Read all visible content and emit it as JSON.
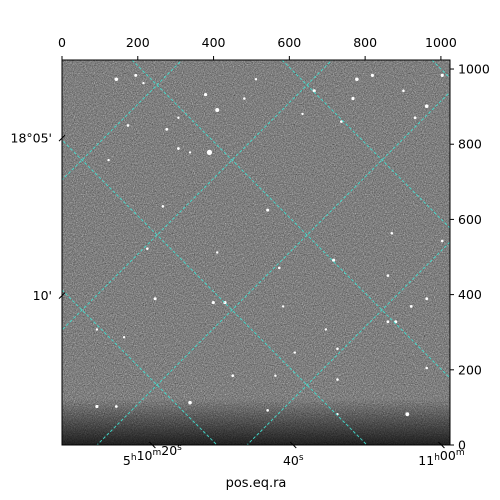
{
  "chart_data": {
    "type": "image",
    "colormap": "grayscale",
    "title": "",
    "xlabel": "pos.eq.ra",
    "ylabel": "",
    "pixel_axes": {
      "x_range": [
        0,
        1024
      ],
      "y_range": [
        0,
        1024
      ],
      "x_ticks": [
        "0",
        "200",
        "400",
        "600",
        "800",
        "1000"
      ],
      "y_ticks": [
        "0",
        "200",
        "400",
        "600",
        "800",
        "1000"
      ]
    },
    "world_axes": {
      "ra_ticks": [
        {
          "h": "5",
          "m": "10",
          "s": "20",
          "pos": 0.233
        },
        {
          "h": "",
          "m": "",
          "s": "40s",
          "pos": 0.596
        },
        {
          "h": "11",
          "m": "00",
          "s": "",
          "pos": 0.978
        }
      ],
      "dec_ticks": [
        {
          "label": "18°05'",
          "pos": 0.797
        },
        {
          "label": "10'",
          "pos": 0.388
        }
      ]
    },
    "grid": {
      "color": "#40e0d0",
      "style": "dashed"
    },
    "stars": [
      [
        0.14,
        0.95,
        1.8
      ],
      [
        0.19,
        0.96,
        1.5
      ],
      [
        0.37,
        0.91,
        1.6
      ],
      [
        0.4,
        0.87,
        2.0
      ],
      [
        0.3,
        0.85,
        1.2
      ],
      [
        0.27,
        0.82,
        1.4
      ],
      [
        0.38,
        0.76,
        2.6
      ],
      [
        0.3,
        0.77,
        1.4
      ],
      [
        0.33,
        0.76,
        1.2
      ],
      [
        0.65,
        0.92,
        1.6
      ],
      [
        0.75,
        0.9,
        1.6
      ],
      [
        0.76,
        0.95,
        1.8
      ],
      [
        0.8,
        0.96,
        1.6
      ],
      [
        0.88,
        0.92,
        1.3
      ],
      [
        0.94,
        0.88,
        1.8
      ],
      [
        0.91,
        0.85,
        1.4
      ],
      [
        0.98,
        0.96,
        1.6
      ],
      [
        0.17,
        0.83,
        1.3
      ],
      [
        0.72,
        0.84,
        1.3
      ],
      [
        0.53,
        0.61,
        1.5
      ],
      [
        0.26,
        0.62,
        1.3
      ],
      [
        0.22,
        0.51,
        1.3
      ],
      [
        0.56,
        0.46,
        1.3
      ],
      [
        0.7,
        0.48,
        1.6
      ],
      [
        0.84,
        0.44,
        1.3
      ],
      [
        0.4,
        0.5,
        1.2
      ],
      [
        0.24,
        0.38,
        1.5
      ],
      [
        0.39,
        0.37,
        1.6
      ],
      [
        0.42,
        0.37,
        1.6
      ],
      [
        0.57,
        0.36,
        1.2
      ],
      [
        0.68,
        0.3,
        1.2
      ],
      [
        0.84,
        0.32,
        1.4
      ],
      [
        0.9,
        0.36,
        1.4
      ],
      [
        0.94,
        0.38,
        1.4
      ],
      [
        0.86,
        0.32,
        1.6
      ],
      [
        0.71,
        0.25,
        1.3
      ],
      [
        0.6,
        0.24,
        1.2
      ],
      [
        0.44,
        0.18,
        1.3
      ],
      [
        0.55,
        0.18,
        1.2
      ],
      [
        0.71,
        0.17,
        1.3
      ],
      [
        0.09,
        0.1,
        1.6
      ],
      [
        0.14,
        0.1,
        1.4
      ],
      [
        0.33,
        0.11,
        1.8
      ],
      [
        0.53,
        0.09,
        1.3
      ],
      [
        0.71,
        0.08,
        1.2
      ],
      [
        0.89,
        0.08,
        1.9
      ],
      [
        0.16,
        0.28,
        1.2
      ],
      [
        0.09,
        0.3,
        1.2
      ],
      [
        0.94,
        0.2,
        1.3
      ],
      [
        0.12,
        0.74,
        1.2
      ],
      [
        0.47,
        0.9,
        1.3
      ],
      [
        0.5,
        0.95,
        1.2
      ],
      [
        0.62,
        0.86,
        1.2
      ],
      [
        0.85,
        0.55,
        1.3
      ],
      [
        0.98,
        0.53,
        1.3
      ],
      [
        0.21,
        0.94,
        1.2
      ]
    ]
  }
}
